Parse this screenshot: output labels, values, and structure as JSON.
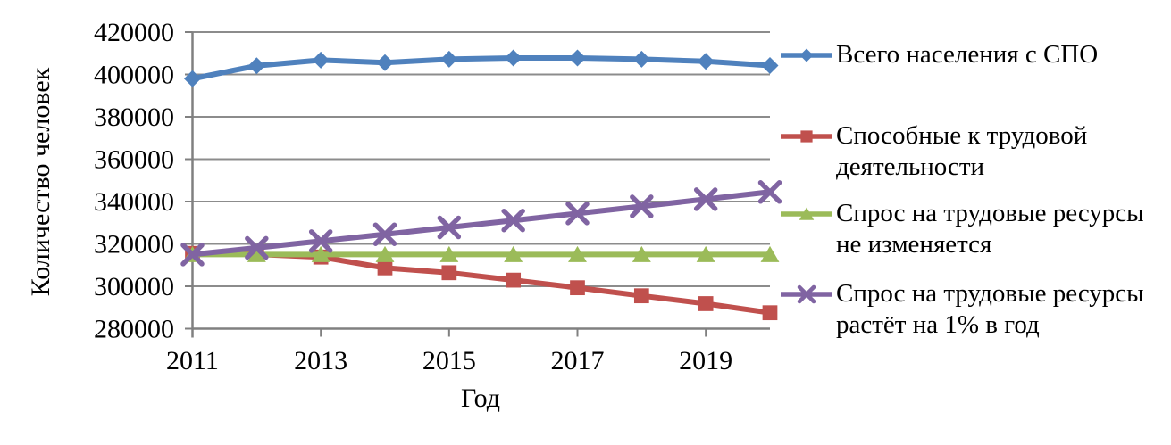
{
  "chart_data": {
    "type": "line",
    "title": "",
    "xlabel": "Год",
    "ylabel": "Количество человек",
    "x": [
      2011,
      2012,
      2013,
      2014,
      2015,
      2016,
      2017,
      2018,
      2019,
      2020
    ],
    "xtick_labels": [
      "2011",
      "2013",
      "2015",
      "2017",
      "2019"
    ],
    "ytick_labels": [
      "280000",
      "300000",
      "320000",
      "340000",
      "360000",
      "380000",
      "400000",
      "420000"
    ],
    "ylim": [
      280000,
      420000
    ],
    "ytick_step": 20000,
    "grid": "horizontal",
    "legend_position": "right",
    "background_color": "#FFFFFF",
    "gridline_color": "#8C8C8C",
    "axis_color": "#808080",
    "text_color": "#000000",
    "series": [
      {
        "name": "Всего населения с СПО",
        "legend_lines": [
          "Всего населения с СПО"
        ],
        "color": "#4F81BD",
        "marker": "diamond",
        "values": [
          398000,
          404100,
          406800,
          405600,
          407200,
          407800,
          407800,
          407200,
          406200,
          404200
        ]
      },
      {
        "name": "Способные к трудовой деятельности",
        "legend_lines": [
          "Способные к трудовой",
          "деятельности"
        ],
        "color": "#C0504D",
        "marker": "square",
        "values": [
          315500,
          315100,
          313800,
          308700,
          306400,
          302900,
          299300,
          295500,
          291800,
          287500
        ]
      },
      {
        "name": "Спрос на трудовые ресурсы не изменяется",
        "legend_lines": [
          "Спрос на трудовые ресурсы",
          "не изменяется"
        ],
        "color": "#9BBB59",
        "marker": "triangle",
        "values": [
          315000,
          315000,
          315000,
          315000,
          315000,
          315000,
          315000,
          315000,
          315000,
          315000
        ]
      },
      {
        "name": "Спрос на трудовые ресурсы растёт на 1% в год",
        "legend_lines": [
          "Спрос на трудовые ресурсы",
          "растёт на 1% в год"
        ],
        "color": "#8064A2",
        "marker": "x",
        "values": [
          315000,
          318150,
          321332,
          324545,
          327790,
          331068,
          334379,
          337723,
          341100,
          344511
        ]
      }
    ]
  }
}
